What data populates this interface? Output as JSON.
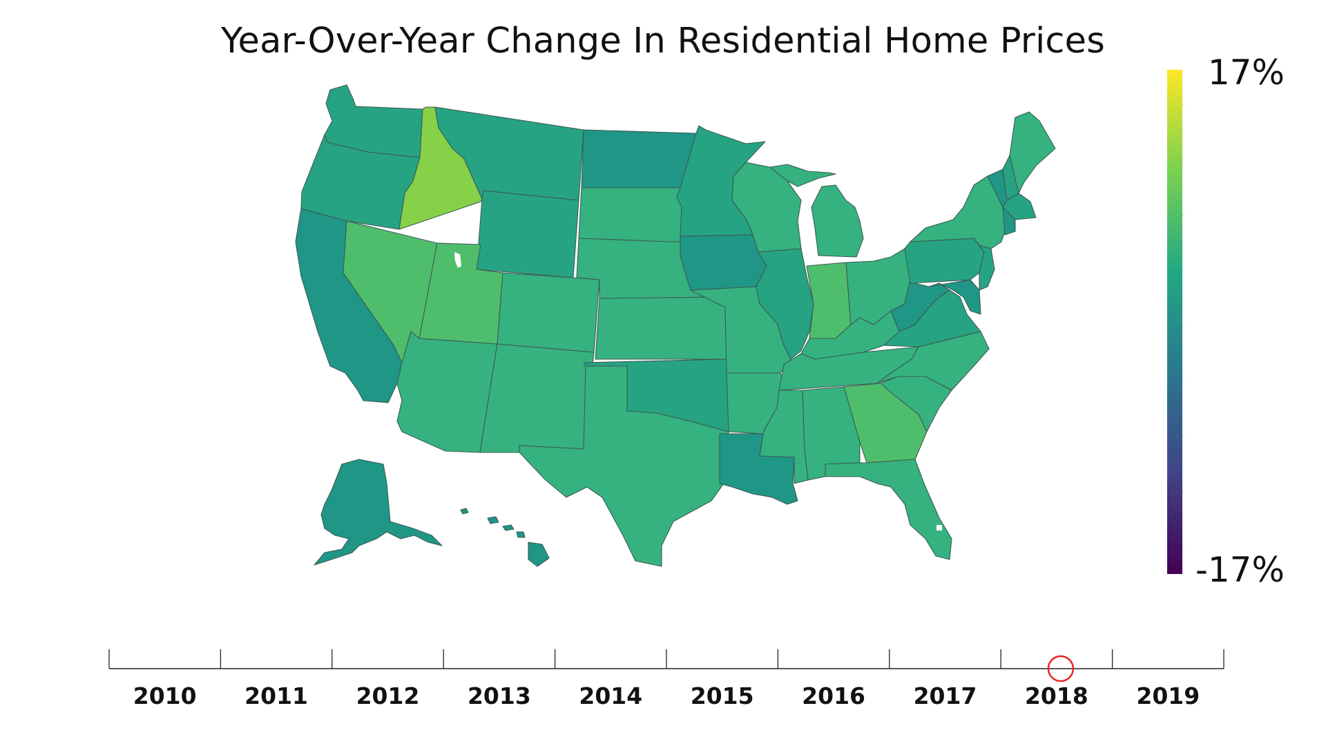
{
  "title": "Year-Over-Year Change In Residential Home Prices",
  "colorbar": {
    "max_label": "17%",
    "min_label": "-17%",
    "min": -17,
    "max": 17,
    "colorscale": [
      "#440154",
      "#414487",
      "#2a788e",
      "#22a884",
      "#7ad151",
      "#fde725"
    ]
  },
  "timeline": {
    "years": [
      "2010",
      "2011",
      "2012",
      "2013",
      "2014",
      "2015",
      "2016",
      "2017",
      "2018",
      "2019"
    ],
    "selected_year": "2018",
    "handle_color": "#e8231f"
  },
  "state_colors": {
    "default": "#35b27f",
    "greener": "#4fbe6c",
    "teal": "#26a383",
    "dark_teal": "#1f9686",
    "darkest_teal": "#1e8f88",
    "lime": "#86d148"
  }
}
